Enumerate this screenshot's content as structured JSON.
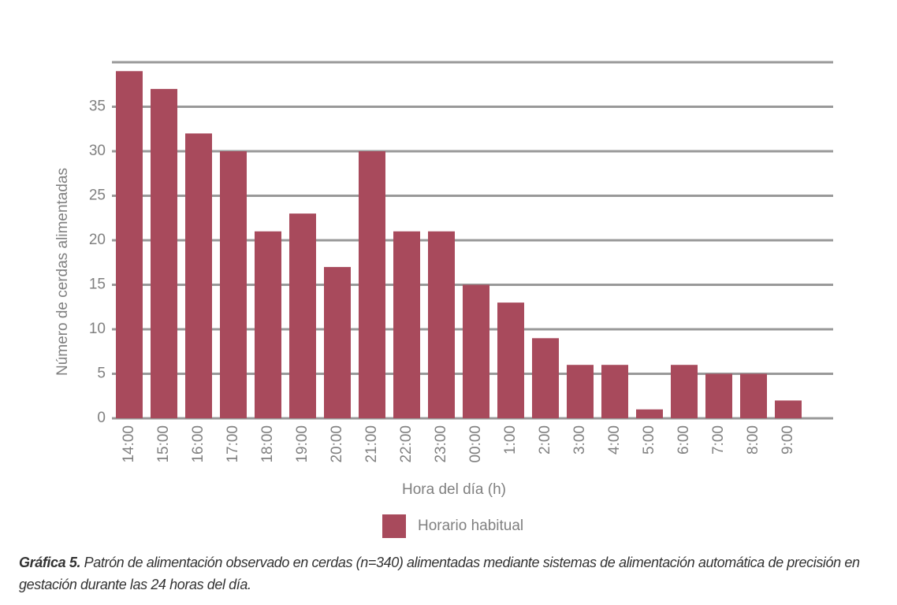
{
  "chart_data": {
    "type": "bar",
    "categories": [
      "14:00",
      "15:00",
      "16:00",
      "17:00",
      "18:00",
      "19:00",
      "20:00",
      "21:00",
      "22:00",
      "23:00",
      "00:00",
      "1:00",
      "2:00",
      "3:00",
      "4:00",
      "5:00",
      "6:00",
      "7:00",
      "8:00",
      "9:00"
    ],
    "series": [
      {
        "name": "Horario habitual",
        "color": "#a84a5c",
        "values": [
          39,
          37,
          32,
          30,
          21,
          23,
          17,
          30,
          21,
          21,
          15,
          13,
          9,
          6,
          6,
          1,
          6,
          5,
          5,
          2
        ]
      }
    ],
    "x_label": "Hora del día (h)",
    "y_label": "Número de cerdas alimentadas",
    "ylim": [
      0,
      40
    ],
    "yticks": [
      0,
      5,
      10,
      15,
      20,
      25,
      30,
      35
    ],
    "grid": true,
    "caption": {
      "label": "Gráfica 5.",
      "text": "Patrón de alimentación observado en cerdas (n=340) alimentadas mediante sistemas de alimentación automática de precisión en gestación durante las 24 horas del día."
    }
  }
}
